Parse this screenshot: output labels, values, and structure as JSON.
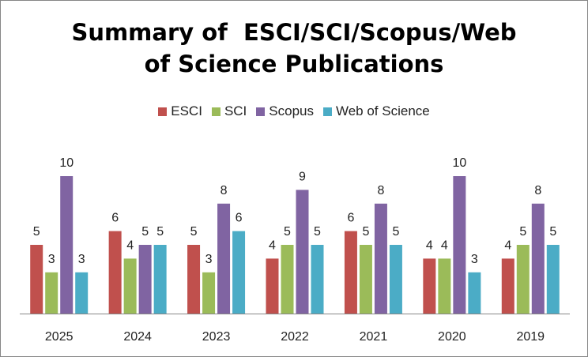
{
  "chart_data": {
    "type": "bar",
    "title_lines": [
      "Summary of  ESCI/SCI/Scopus/Web",
      "of Science Publications"
    ],
    "categories": [
      "2025",
      "2024",
      "2023",
      "2022",
      "2021",
      "2020",
      "2019"
    ],
    "series": [
      {
        "name": "ESCI",
        "color": "#C0504D",
        "values": [
          5,
          6,
          5,
          4,
          6,
          4,
          4
        ]
      },
      {
        "name": "SCI",
        "color": "#9BBB59",
        "values": [
          3,
          4,
          3,
          5,
          5,
          4,
          5
        ]
      },
      {
        "name": "Scopus",
        "color": "#8064A2",
        "values": [
          10,
          5,
          8,
          9,
          8,
          10,
          8
        ]
      },
      {
        "name": "Web of Science",
        "color": "#4BACC6",
        "values": [
          3,
          5,
          6,
          5,
          5,
          3,
          5
        ]
      }
    ],
    "xlabel": "",
    "ylabel": "",
    "ylim": [
      0,
      10
    ],
    "legend_position": "top",
    "grid": false,
    "data_labels": true
  }
}
